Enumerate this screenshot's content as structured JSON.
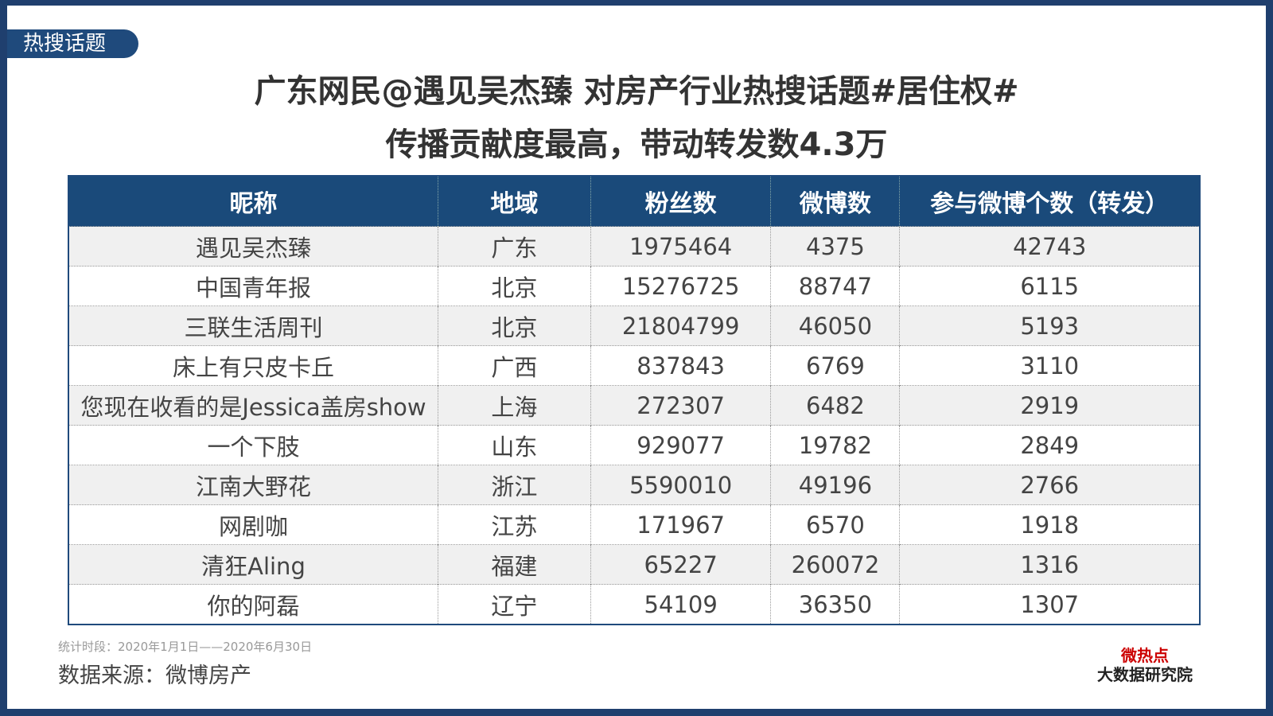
{
  "tag": "热搜话题",
  "title": {
    "line1": "广东网民@遇见吴杰臻 对房产行业热搜话题#居住权#",
    "line2": "传播贡献度最高，带动转发数4.3万"
  },
  "table": {
    "header": [
      "昵称",
      "地域",
      "粉丝数",
      "微博数",
      "参与微博个数（转发）"
    ],
    "rows": [
      [
        "遇见吴杰臻",
        "广东",
        "1975464",
        "4375",
        "42743"
      ],
      [
        "中国青年报",
        "北京",
        "15276725",
        "88747",
        "6115"
      ],
      [
        "三联生活周刊",
        "北京",
        "21804799",
        "46050",
        "5193"
      ],
      [
        "床上有只皮卡丘",
        "广西",
        "837843",
        "6769",
        "3110"
      ],
      [
        "您现在收看的是Jessica盖房show",
        "上海",
        "272307",
        "6482",
        "2919"
      ],
      [
        "一个下肢",
        "山东",
        "929077",
        "19782",
        "2849"
      ],
      [
        "江南大野花",
        "浙江",
        "5590010",
        "49196",
        "2766"
      ],
      [
        "网剧咖",
        "江苏",
        "171967",
        "6570",
        "1918"
      ],
      [
        "清狂Aling",
        "福建",
        "65227",
        "260072",
        "1316"
      ],
      [
        "你的阿磊",
        "辽宁",
        "54109",
        "36350",
        "1307"
      ]
    ]
  },
  "footer": {
    "period": "统计时段：2020年1月1日——2020年6月30日",
    "source": "数据来源：微博房产"
  },
  "logo": {
    "line1": "微热点",
    "line2": "大数据研究院"
  }
}
